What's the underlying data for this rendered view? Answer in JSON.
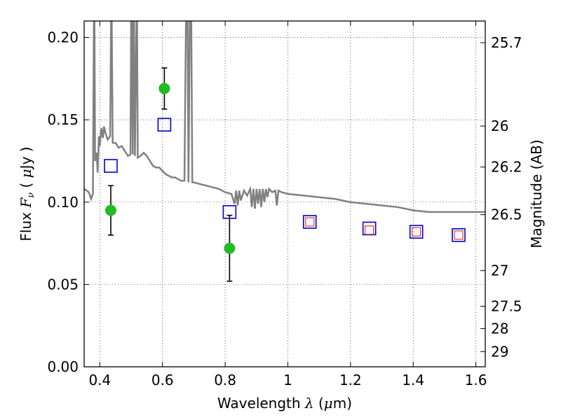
{
  "chart_data": {
    "type": "scatter",
    "xlabel": {
      "prefix": "Wavelength  ",
      "symbol": "λ",
      "unit": " (",
      "mu": "μ",
      "rest": "m)"
    },
    "ylabel": {
      "prefix": "Flux  ",
      "symbol": "F",
      "sub": "ν",
      "open": "  (  ",
      "mu": "μ",
      "rest": "Jy  )"
    },
    "ylabel_right": "Magnitude (AB)",
    "xlim": [
      0.35,
      1.63
    ],
    "ylim": [
      0.0,
      0.21
    ],
    "grid": true,
    "x_ticks": [
      {
        "value": 0.4,
        "label": "0.4"
      },
      {
        "value": 0.6,
        "label": "0.6"
      },
      {
        "value": 0.8,
        "label": "0.8"
      },
      {
        "value": 1.0,
        "label": "1"
      },
      {
        "value": 1.2,
        "label": "1.2"
      },
      {
        "value": 1.4,
        "label": "1.4"
      },
      {
        "value": 1.6,
        "label": "1.6"
      }
    ],
    "y_ticks": [
      {
        "value": 0.0,
        "label": "0.00"
      },
      {
        "value": 0.05,
        "label": "0.05"
      },
      {
        "value": 0.1,
        "label": "0.10"
      },
      {
        "value": 0.15,
        "label": "0.15"
      },
      {
        "value": 0.2,
        "label": "0.20"
      }
    ],
    "right_ticks": [
      {
        "flux": 0.1968,
        "label": "25.7"
      },
      {
        "flux": 0.1462,
        "label": "26"
      },
      {
        "flux": 0.1213,
        "label": "26.2"
      },
      {
        "flux": 0.0924,
        "label": "26.5"
      },
      {
        "flux": 0.0584,
        "label": "27"
      },
      {
        "flux": 0.0368,
        "label": "27.5"
      },
      {
        "flux": 0.0232,
        "label": "28"
      },
      {
        "flux": 0.0092,
        "label": "29"
      }
    ],
    "series": [
      {
        "kind": "observed",
        "color": "#22bb22",
        "points": [
          {
            "x": 0.435,
            "y": 0.095,
            "yerr": 0.015
          },
          {
            "x": 0.606,
            "y": 0.169,
            "yerr": 0.0125
          },
          {
            "x": 0.814,
            "y": 0.072,
            "yerr": 0.02
          }
        ]
      },
      {
        "kind": "model-boxes",
        "color": "#0000cc",
        "points": [
          {
            "x": 0.435,
            "y": 0.122
          },
          {
            "x": 0.606,
            "y": 0.147
          },
          {
            "x": 0.814,
            "y": 0.094
          },
          {
            "x": 1.07,
            "y": 0.088
          },
          {
            "x": 1.26,
            "y": 0.084
          },
          {
            "x": 1.41,
            "y": 0.082
          },
          {
            "x": 1.545,
            "y": 0.08
          }
        ]
      },
      {
        "kind": "model-small-boxes",
        "color": "#ee3333",
        "points": [
          {
            "x": 1.07,
            "y": 0.088
          },
          {
            "x": 1.26,
            "y": 0.083
          },
          {
            "x": 1.41,
            "y": 0.082
          },
          {
            "x": 1.545,
            "y": 0.08
          }
        ]
      },
      {
        "kind": "spectrum",
        "color": "#808080",
        "points": [
          [
            0.35,
            0.108
          ],
          [
            0.365,
            0.106
          ],
          [
            0.372,
            0.102
          ],
          [
            0.378,
            0.105
          ],
          [
            0.381,
            0.21
          ],
          [
            0.383,
            0.21
          ],
          [
            0.385,
            0.125
          ],
          [
            0.39,
            0.13
          ],
          [
            0.393,
            0.118
          ],
          [
            0.397,
            0.14
          ],
          [
            0.4,
            0.134
          ],
          [
            0.405,
            0.145
          ],
          [
            0.41,
            0.139
          ],
          [
            0.413,
            0.146
          ],
          [
            0.418,
            0.142
          ],
          [
            0.425,
            0.138
          ],
          [
            0.433,
            0.14
          ],
          [
            0.436,
            0.21
          ],
          [
            0.438,
            0.21
          ],
          [
            0.441,
            0.136
          ],
          [
            0.45,
            0.136
          ],
          [
            0.46,
            0.133
          ],
          [
            0.47,
            0.134
          ],
          [
            0.48,
            0.131
          ],
          [
            0.49,
            0.128
          ],
          [
            0.498,
            0.129
          ],
          [
            0.5,
            0.21
          ],
          [
            0.502,
            0.21
          ],
          [
            0.505,
            0.129
          ],
          [
            0.507,
            0.21
          ],
          [
            0.509,
            0.21
          ],
          [
            0.512,
            0.128
          ],
          [
            0.517,
            0.21
          ],
          [
            0.519,
            0.21
          ],
          [
            0.521,
            0.127
          ],
          [
            0.53,
            0.128
          ],
          [
            0.54,
            0.13
          ],
          [
            0.55,
            0.128
          ],
          [
            0.56,
            0.125
          ],
          [
            0.57,
            0.122
          ],
          [
            0.58,
            0.121
          ],
          [
            0.59,
            0.121
          ],
          [
            0.6,
            0.119
          ],
          [
            0.61,
            0.117
          ],
          [
            0.62,
            0.116
          ],
          [
            0.63,
            0.115
          ],
          [
            0.64,
            0.115
          ],
          [
            0.65,
            0.114
          ],
          [
            0.66,
            0.113
          ],
          [
            0.67,
            0.113
          ],
          [
            0.675,
            0.21
          ],
          [
            0.68,
            0.21
          ],
          [
            0.683,
            0.112
          ],
          [
            0.687,
            0.21
          ],
          [
            0.692,
            0.21
          ],
          [
            0.695,
            0.112
          ],
          [
            0.7,
            0.112
          ],
          [
            0.72,
            0.111
          ],
          [
            0.74,
            0.11
          ],
          [
            0.76,
            0.109
          ],
          [
            0.78,
            0.108
          ],
          [
            0.8,
            0.106
          ],
          [
            0.82,
            0.105
          ],
          [
            0.83,
            0.099
          ],
          [
            0.835,
            0.107
          ],
          [
            0.84,
            0.098
          ],
          [
            0.845,
            0.107
          ],
          [
            0.85,
            0.101
          ],
          [
            0.86,
            0.107
          ],
          [
            0.87,
            0.104
          ],
          [
            0.88,
            0.108
          ],
          [
            0.885,
            0.097
          ],
          [
            0.89,
            0.108
          ],
          [
            0.895,
            0.096
          ],
          [
            0.9,
            0.108
          ],
          [
            0.905,
            0.099
          ],
          [
            0.91,
            0.108
          ],
          [
            0.915,
            0.097
          ],
          [
            0.92,
            0.108
          ],
          [
            0.925,
            0.1
          ],
          [
            0.93,
            0.108
          ],
          [
            0.935,
            0.103
          ],
          [
            0.94,
            0.108
          ],
          [
            0.95,
            0.106
          ],
          [
            0.96,
            0.107
          ],
          [
            0.965,
            0.098
          ],
          [
            0.97,
            0.107
          ],
          [
            0.98,
            0.106
          ],
          [
            1.0,
            0.105
          ],
          [
            1.05,
            0.104
          ],
          [
            1.1,
            0.103
          ],
          [
            1.15,
            0.102
          ],
          [
            1.2,
            0.1
          ],
          [
            1.25,
            0.099
          ],
          [
            1.3,
            0.098
          ],
          [
            1.35,
            0.097
          ],
          [
            1.4,
            0.095
          ],
          [
            1.45,
            0.094
          ],
          [
            1.5,
            0.094
          ],
          [
            1.55,
            0.094
          ],
          [
            1.6,
            0.094
          ],
          [
            1.63,
            0.094
          ]
        ]
      }
    ]
  }
}
